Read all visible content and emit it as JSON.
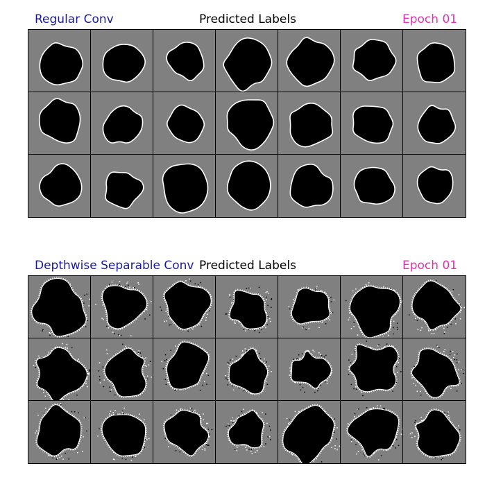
{
  "colors": {
    "title_left": "#1a1aa0",
    "title_center": "#000000",
    "title_right": "#e62eb5",
    "cell_bg": "#808080",
    "blob": "#000000",
    "edge": "#ffffff"
  },
  "panels": [
    {
      "title_left": "Regular Conv",
      "title_center": "Predicted Labels",
      "title_right": "Epoch 01",
      "rows": 3,
      "cols": 7,
      "style": "smooth"
    },
    {
      "title_left": "Depthwise Separable Conv",
      "title_center": "Predicted Labels",
      "title_right": "Epoch 01",
      "rows": 3,
      "cols": 7,
      "style": "noisy"
    }
  ]
}
